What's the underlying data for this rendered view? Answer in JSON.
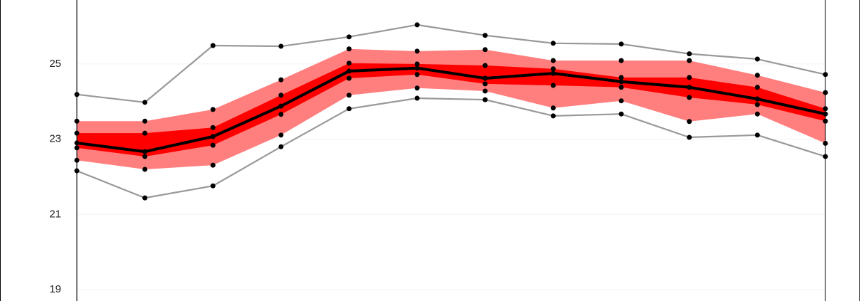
{
  "chart_data": {
    "type": "fan",
    "categories": [
      null,
      null,
      null,
      null,
      null,
      null,
      null,
      null,
      null,
      null,
      null,
      null
    ],
    "ylim": [
      18.7,
      26.7
    ],
    "yticks": [
      19,
      21,
      23,
      25
    ],
    "grid": true,
    "marker_color": "#000000",
    "bands": [
      {
        "color": "#ff7f7f",
        "series": [
          1,
          5
        ]
      },
      {
        "color": "#ff0000",
        "series": [
          2,
          4
        ]
      }
    ],
    "series": [
      {
        "color": "#999999",
        "line": true,
        "values": [
          24.19,
          23.98,
          25.49,
          25.47,
          25.72,
          26.04,
          25.76,
          25.55,
          25.53,
          25.27,
          25.13,
          24.72
        ]
      },
      {
        "color": "#ff7f7f",
        "line": false,
        "values": [
          23.48,
          23.48,
          23.79,
          24.58,
          25.4,
          25.34,
          25.38,
          25.09,
          25.09,
          25.09,
          24.7,
          24.24
        ]
      },
      {
        "color": "#ff0000",
        "line": false,
        "values": [
          23.16,
          23.16,
          23.31,
          24.17,
          25.02,
          25.0,
          24.96,
          24.87,
          24.64,
          24.64,
          24.38,
          23.81
        ]
      },
      {
        "color": "#000000",
        "line": true,
        "values": [
          22.9,
          22.67,
          23.07,
          23.88,
          24.81,
          24.89,
          24.62,
          24.75,
          24.53,
          24.38,
          24.07,
          23.67
        ]
      },
      {
        "color": "#ff0000",
        "line": false,
        "values": [
          22.77,
          22.54,
          22.84,
          23.66,
          24.62,
          24.72,
          24.47,
          24.43,
          24.38,
          24.11,
          23.92,
          23.48
        ]
      },
      {
        "color": "#ff7f7f",
        "line": false,
        "values": [
          22.44,
          22.2,
          22.31,
          23.11,
          24.17,
          24.36,
          24.28,
          23.83,
          24.02,
          23.47,
          23.67,
          22.89
        ]
      },
      {
        "color": "#999999",
        "line": true,
        "values": [
          22.16,
          21.44,
          21.76,
          22.8,
          23.81,
          24.09,
          24.05,
          23.62,
          23.67,
          23.05,
          23.11,
          22.54
        ]
      }
    ]
  }
}
